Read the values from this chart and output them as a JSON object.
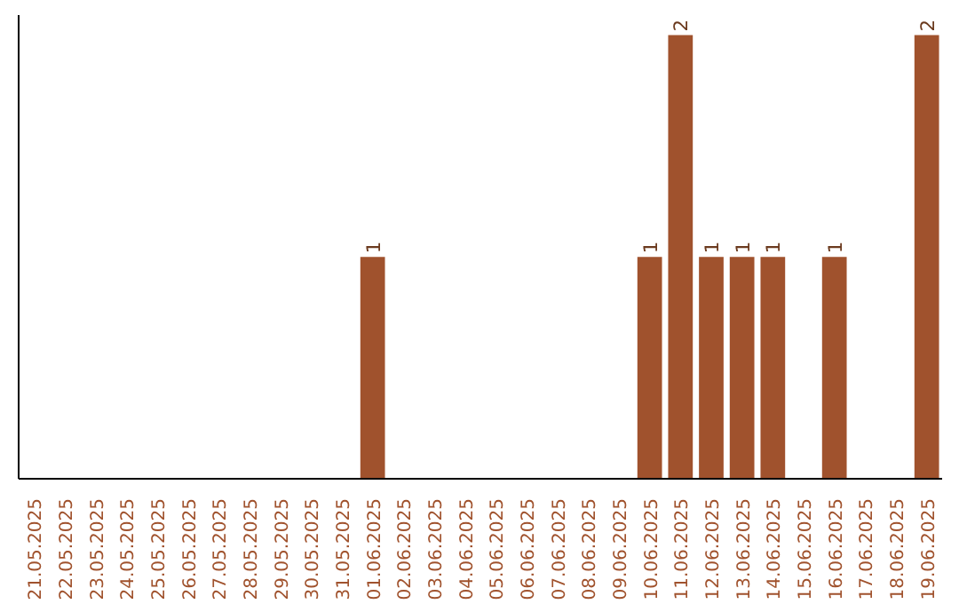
{
  "chart_data": {
    "type": "bar",
    "color": "#a0522d",
    "categories": [
      "21.05.2025",
      "22.05.2025",
      "23.05.2025",
      "24.05.2025",
      "25.05.2025",
      "26.05.2025",
      "27.05.2025",
      "28.05.2025",
      "29.05.2025",
      "30.05.2025",
      "31.05.2025",
      "01.06.2025",
      "02.06.2025",
      "03.06.2025",
      "04.06.2025",
      "05.06.2025",
      "06.06.2025",
      "07.06.2025",
      "08.06.2025",
      "09.06.2025",
      "10.06.2025",
      "11.06.2025",
      "12.06.2025",
      "13.06.2025",
      "14.06.2025",
      "15.06.2025",
      "16.06.2025",
      "17.06.2025",
      "18.06.2025",
      "19.06.2025"
    ],
    "values": [
      0,
      0,
      0,
      0,
      0,
      0,
      0,
      0,
      0,
      0,
      0,
      1,
      0,
      0,
      0,
      0,
      0,
      0,
      0,
      0,
      1,
      2,
      1,
      1,
      1,
      0,
      1,
      0,
      0,
      2
    ],
    "value_labels": [
      null,
      null,
      null,
      null,
      null,
      null,
      null,
      null,
      null,
      null,
      null,
      "1",
      null,
      null,
      null,
      null,
      null,
      null,
      null,
      null,
      "1",
      "2",
      "1",
      "1",
      "1",
      null,
      "1",
      null,
      null,
      "2"
    ],
    "grid": false
  }
}
